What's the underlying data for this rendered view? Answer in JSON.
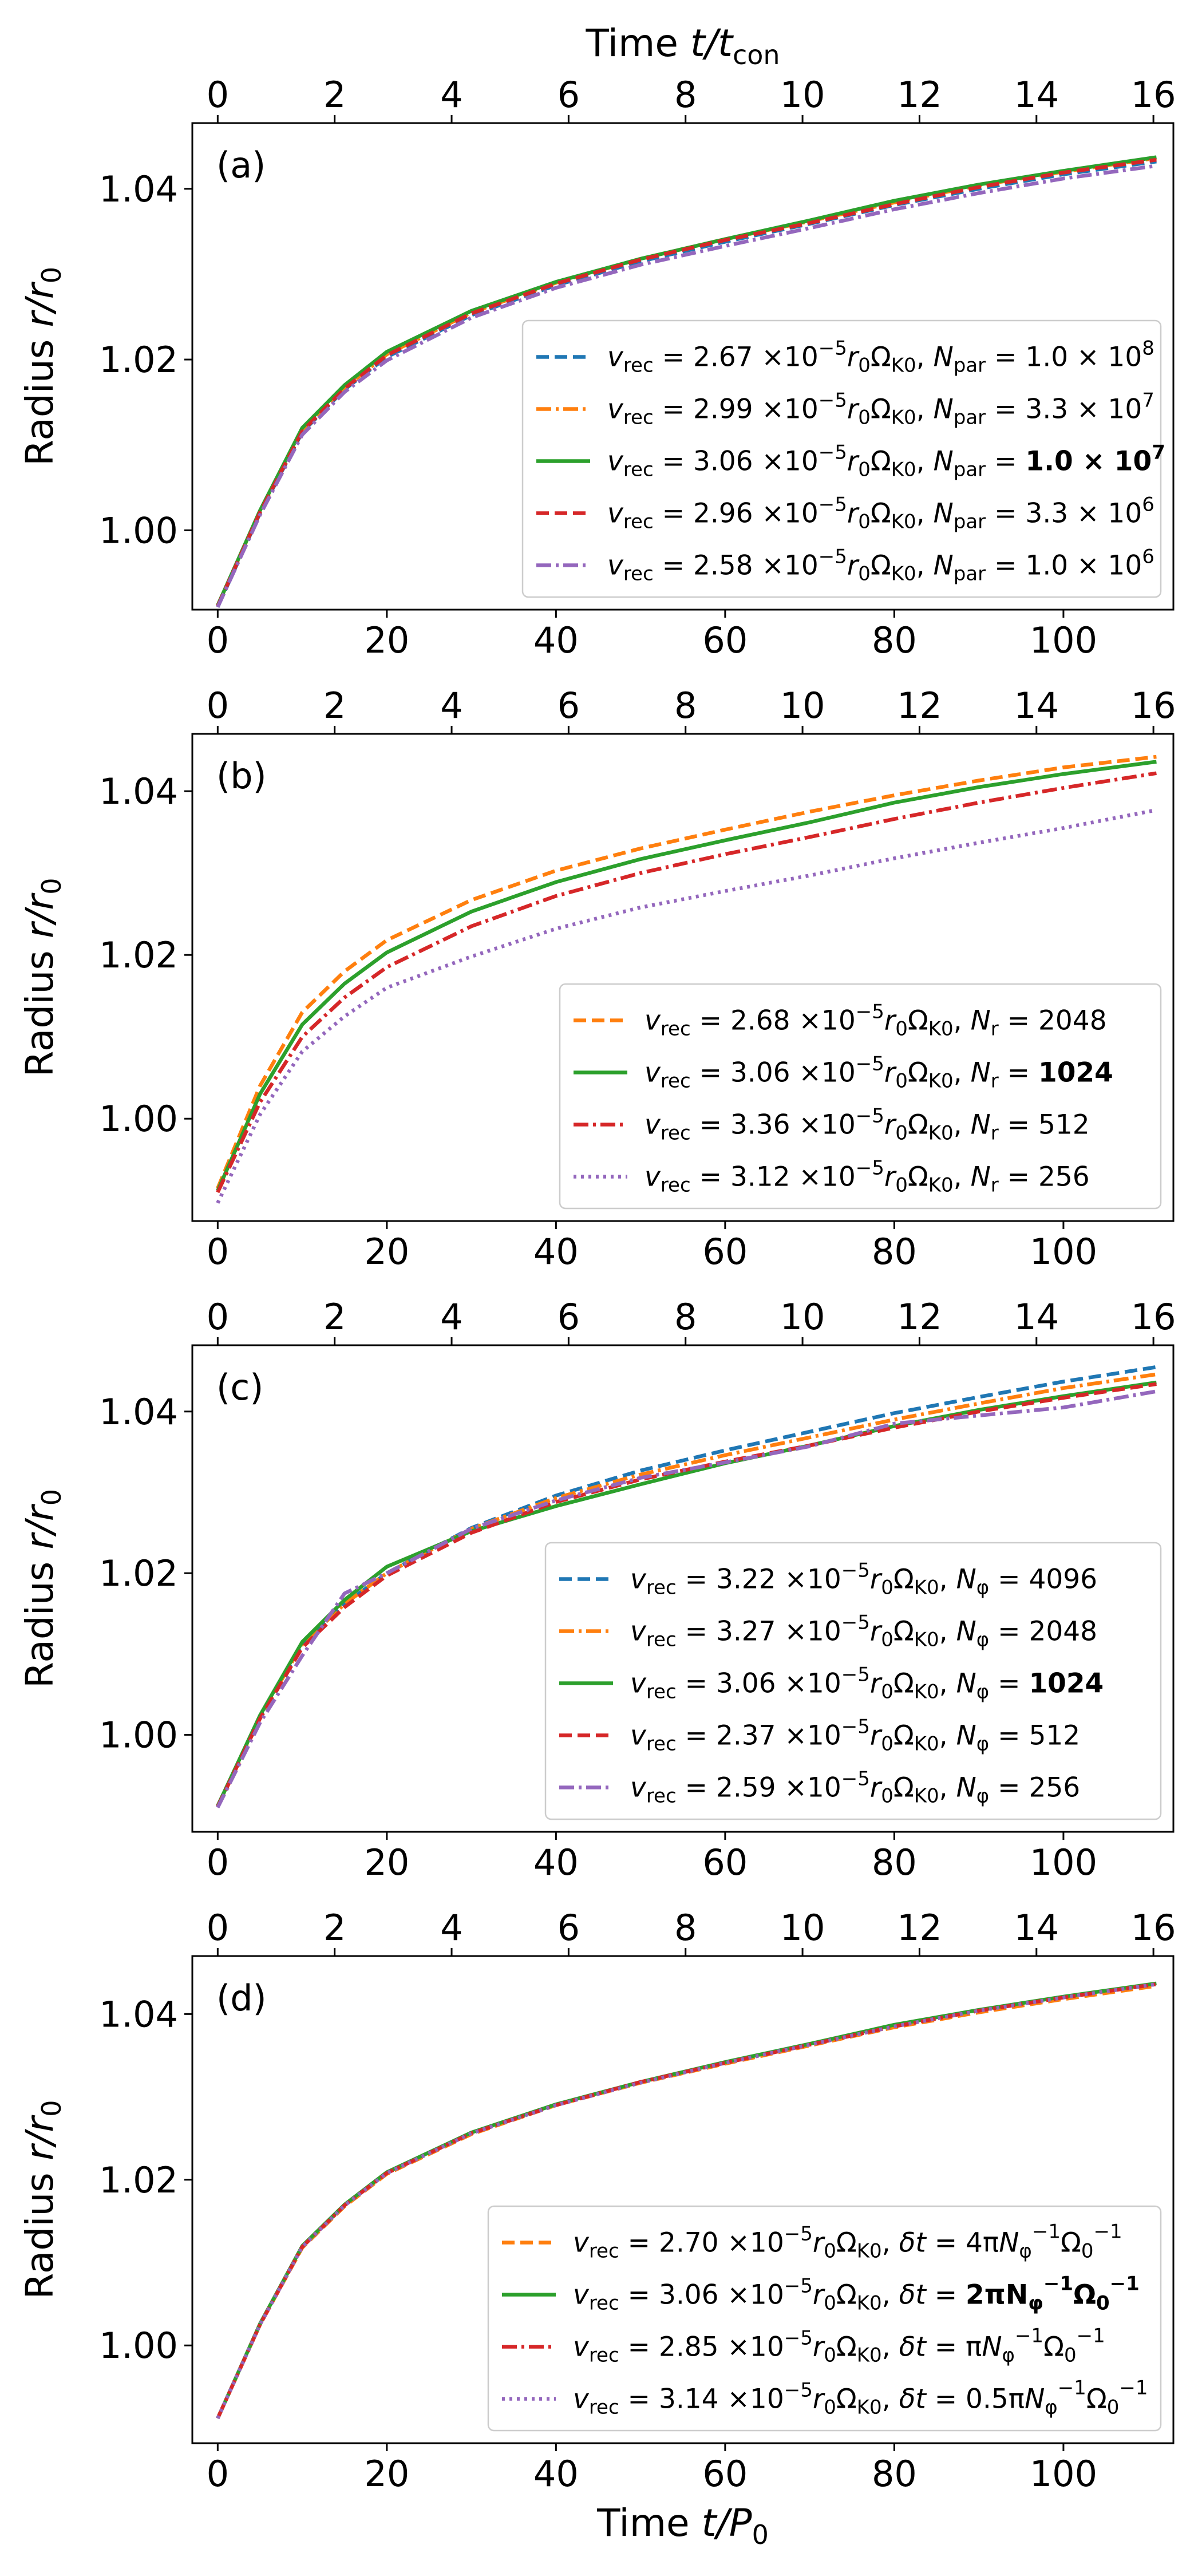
{
  "figure": {
    "top_axis_title_prefix": "Time ",
    "top_axis_title_var": "t",
    "top_axis_title_den": "/t",
    "top_axis_title_sub": "con",
    "bottom_axis_title_prefix": "Time ",
    "bottom_axis_title_var": "t",
    "bottom_axis_title_den": "/P",
    "bottom_axis_title_sub": "0",
    "ylabel_prefix": "Radius ",
    "ylabel_var": "r",
    "ylabel_den": "/r",
    "ylabel_sub": "0"
  },
  "colors": {
    "blue": "#1f77b4",
    "orange": "#ff7f0e",
    "green": "#2ca02c",
    "red": "#d62728",
    "purple": "#9467bd"
  },
  "chart_data": [
    {
      "type": "line",
      "panel_label": "(a)",
      "xlabel_bottom": "",
      "x_ticks": [
        "0",
        "20",
        "40",
        "60",
        "80",
        "100"
      ],
      "x_top_ticks": [
        "0",
        "2",
        "4",
        "6",
        "8",
        "10",
        "12",
        "14",
        "16"
      ],
      "y_ticks": [
        "1.00",
        "1.02",
        "1.04"
      ],
      "xlim": [
        -3,
        113
      ],
      "ylim": [
        0.9907,
        1.0477
      ],
      "legend": "lower-right",
      "x": [
        0,
        5,
        10,
        15,
        20,
        30,
        40,
        50,
        60,
        70,
        80,
        90,
        100,
        111
      ],
      "series": [
        {
          "name": "v_rec = 2.67 ×10^-5 r0ΩK0, N_par = 1.0 × 10^8",
          "color": "blue",
          "style": "dashed",
          "legend_value": "2.67",
          "legend_param": "N",
          "legend_param_sub": "par",
          "legend_param_value": "1.0 × 10",
          "legend_param_exp": "8",
          "bold": false,
          "values": [
            0.991,
            1.002,
            1.0115,
            1.0165,
            1.0203,
            1.0252,
            1.0287,
            1.0315,
            1.0338,
            1.0359,
            1.0381,
            1.04,
            1.0417,
            1.0432
          ]
        },
        {
          "name": "v_rec = 2.99 ×10^-5 r0ΩK0, N_par = 3.3 × 10^7",
          "color": "orange",
          "style": "dashdot",
          "legend_value": "2.99",
          "legend_param": "N",
          "legend_param_sub": "par",
          "legend_param_value": "3.3 × 10",
          "legend_param_exp": "7",
          "bold": false,
          "values": [
            0.9912,
            1.0022,
            1.0118,
            1.0167,
            1.0206,
            1.0255,
            1.029,
            1.0318,
            1.0341,
            1.0362,
            1.0384,
            1.0404,
            1.042,
            1.0436
          ]
        },
        {
          "name": "v_rec = 3.06 ×10^-5 r0ΩK0, N_par = 1.0 × 10^7",
          "color": "green",
          "style": "solid",
          "legend_value": "3.06",
          "legend_param": "N",
          "legend_param_sub": "par",
          "legend_param_value": "1.0 × 10",
          "legend_param_exp": "7",
          "bold": true,
          "values": [
            0.9912,
            1.0023,
            1.012,
            1.017,
            1.0209,
            1.0257,
            1.0291,
            1.0318,
            1.0341,
            1.0363,
            1.0386,
            1.0405,
            1.0421,
            1.0437
          ]
        },
        {
          "name": "v_rec = 2.96 ×10^-5 r0ΩK0, N_par = 3.3 × 10^6",
          "color": "red",
          "style": "dashed",
          "legend_value": "2.96",
          "legend_param": "N",
          "legend_param_sub": "par",
          "legend_param_value": "3.3 × 10",
          "legend_param_exp": "6",
          "bold": false,
          "values": [
            0.9911,
            1.0021,
            1.0116,
            1.0166,
            1.0205,
            1.0254,
            1.0289,
            1.0317,
            1.034,
            1.036,
            1.0382,
            1.0402,
            1.0419,
            1.0434
          ]
        },
        {
          "name": "v_rec = 2.58 ×10^-5 r0ΩK0, N_par = 1.0 × 10^6",
          "color": "purple",
          "style": "dashdot",
          "legend_value": "2.58",
          "legend_param": "N",
          "legend_param_sub": "par",
          "legend_param_value": "1.0 × 10",
          "legend_param_exp": "6",
          "bold": false,
          "values": [
            0.991,
            1.0018,
            1.0112,
            1.0162,
            1.0199,
            1.0249,
            1.0284,
            1.0311,
            1.0333,
            1.0354,
            1.0376,
            1.0395,
            1.0412,
            1.0427
          ]
        }
      ]
    },
    {
      "type": "line",
      "panel_label": "(b)",
      "xlabel_bottom": "",
      "x_ticks": [
        "0",
        "20",
        "40",
        "60",
        "80",
        "100"
      ],
      "x_top_ticks": [
        "0",
        "2",
        "4",
        "6",
        "8",
        "10",
        "12",
        "14",
        "16"
      ],
      "y_ticks": [
        "1.00",
        "1.02",
        "1.04"
      ],
      "xlim": [
        -3,
        113
      ],
      "ylim": [
        0.9875,
        1.047
      ],
      "legend": "lower-right",
      "x": [
        0,
        5,
        10,
        15,
        20,
        30,
        40,
        50,
        60,
        70,
        80,
        90,
        100,
        111
      ],
      "series": [
        {
          "name": "v_rec = 2.68 ×10^-5 r0ΩK0, N_r = 2048",
          "color": "orange",
          "style": "dashed",
          "legend_value": "2.68",
          "legend_param": "N",
          "legend_param_sub": "r",
          "legend_param_value": "2048",
          "legend_param_exp": "",
          "bold": false,
          "values": [
            0.9915,
            1.004,
            1.013,
            1.018,
            1.0218,
            1.0267,
            1.0303,
            1.033,
            1.0353,
            1.0375,
            1.0395,
            1.0413,
            1.0429,
            1.0442
          ]
        },
        {
          "name": "v_rec = 3.06 ×10^-5 r0ΩK0, N_r = 1024",
          "color": "green",
          "style": "solid",
          "legend_value": "3.06",
          "legend_param": "N",
          "legend_param_sub": "r",
          "legend_param_value": "1024",
          "legend_param_exp": "",
          "bold": true,
          "values": [
            0.9912,
            1.003,
            1.0115,
            1.0165,
            1.0203,
            1.0253,
            1.0289,
            1.0317,
            1.034,
            1.0362,
            1.0386,
            1.0405,
            1.0421,
            1.0436
          ]
        },
        {
          "name": "v_rec = 3.36 ×10^-5 r0ΩK0, N_r = 512",
          "color": "red",
          "style": "dashdot",
          "legend_value": "3.36",
          "legend_param": "N",
          "legend_param_sub": "r",
          "legend_param_value": "512",
          "legend_param_exp": "",
          "bold": false,
          "values": [
            0.991,
            1.002,
            1.01,
            1.0148,
            1.0185,
            1.0235,
            1.0272,
            1.03,
            1.0323,
            1.0344,
            1.0366,
            1.0386,
            1.0404,
            1.0422
          ]
        },
        {
          "name": "v_rec = 3.12 ×10^-5 r0ΩK0, N_r = 256",
          "color": "purple",
          "style": "dotted",
          "legend_value": "3.12",
          "legend_param": "N",
          "legend_param_sub": "r",
          "legend_param_value": "256",
          "legend_param_exp": "",
          "bold": false,
          "values": [
            0.9897,
            1.0005,
            1.0082,
            1.0125,
            1.016,
            1.0198,
            1.0232,
            1.0258,
            1.0278,
            1.0297,
            1.0318,
            1.0337,
            1.0355,
            1.0377
          ]
        }
      ]
    },
    {
      "type": "line",
      "panel_label": "(c)",
      "xlabel_bottom": "",
      "x_ticks": [
        "0",
        "20",
        "40",
        "60",
        "80",
        "100"
      ],
      "x_top_ticks": [
        "0",
        "2",
        "4",
        "6",
        "8",
        "10",
        "12",
        "14",
        "16"
      ],
      "y_ticks": [
        "1.00",
        "1.02",
        "1.04"
      ],
      "xlim": [
        -3,
        113
      ],
      "ylim": [
        0.988,
        1.0482
      ],
      "legend": "lower-right",
      "x": [
        0,
        5,
        10,
        15,
        20,
        30,
        40,
        50,
        60,
        70,
        80,
        90,
        100,
        111
      ],
      "series": [
        {
          "name": "v_rec = 3.22 ×10^-5 r0ΩK0, N_φ = 4096",
          "color": "blue",
          "style": "dashed",
          "legend_value": "3.22",
          "legend_param": "N",
          "legend_param_sub": "φ",
          "legend_param_value": "4096",
          "legend_param_exp": "",
          "bold": false,
          "values": [
            0.9912,
            1.0022,
            1.0112,
            1.0162,
            1.02,
            1.0256,
            1.0296,
            1.0327,
            1.0352,
            1.0375,
            1.0398,
            1.0418,
            1.0437,
            1.0455
          ]
        },
        {
          "name": "v_rec = 3.27 ×10^-5 r0ΩK0, N_φ = 2048",
          "color": "orange",
          "style": "dashdot",
          "legend_value": "3.27",
          "legend_param": "N",
          "legend_param_sub": "φ",
          "legend_param_value": "2048",
          "legend_param_exp": "",
          "bold": false,
          "values": [
            0.9912,
            1.0022,
            1.0112,
            1.0162,
            1.02,
            1.0255,
            1.0293,
            1.0322,
            1.0346,
            1.0368,
            1.039,
            1.041,
            1.0429,
            1.0446
          ]
        },
        {
          "name": "v_rec = 3.06 ×10^-5 r0ΩK0, N_φ = 1024",
          "color": "green",
          "style": "solid",
          "legend_value": "3.06",
          "legend_param": "N",
          "legend_param_sub": "φ",
          "legend_param_value": "1024",
          "legend_param_exp": "",
          "bold": true,
          "values": [
            0.9912,
            1.0024,
            1.0115,
            1.0167,
            1.0208,
            1.0252,
            1.0283,
            1.031,
            1.0336,
            1.0358,
            1.0382,
            1.0402,
            1.0419,
            1.0436
          ]
        },
        {
          "name": "v_rec = 2.37 ×10^-5 r0ΩK0, N_φ = 512",
          "color": "red",
          "style": "dashed",
          "legend_value": "2.37",
          "legend_param": "N",
          "legend_param_sub": "φ",
          "legend_param_value": "512",
          "legend_param_exp": "",
          "bold": false,
          "values": [
            0.9911,
            1.002,
            1.0108,
            1.0158,
            1.0197,
            1.025,
            1.0288,
            1.0316,
            1.0338,
            1.0358,
            1.038,
            1.04,
            1.0417,
            1.0434
          ]
        },
        {
          "name": "v_rec = 2.59 ×10^-5 r0ΩK0, N_φ = 256",
          "color": "purple",
          "style": "dashdot",
          "legend_value": "2.59",
          "legend_param": "N",
          "legend_param_sub": "φ",
          "legend_param_value": "256",
          "legend_param_exp": "",
          "bold": false,
          "values": [
            0.991,
            1.0015,
            1.0098,
            1.0175,
            1.02,
            1.0255,
            1.029,
            1.0318,
            1.0337,
            1.0357,
            1.0385,
            1.0395,
            1.0405,
            1.0425
          ]
        }
      ]
    },
    {
      "type": "line",
      "panel_label": "(d)",
      "xlabel_bottom": "Time t/P0",
      "x_ticks": [
        "0",
        "20",
        "40",
        "60",
        "80",
        "100"
      ],
      "x_top_ticks": [
        "0",
        "2",
        "4",
        "6",
        "8",
        "10",
        "12",
        "14",
        "16"
      ],
      "y_ticks": [
        "1.00",
        "1.02",
        "1.04"
      ],
      "xlim": [
        -3,
        113
      ],
      "ylim": [
        0.9882,
        1.047
      ],
      "legend": "lower-right",
      "x": [
        0,
        5,
        10,
        15,
        20,
        30,
        40,
        50,
        60,
        70,
        80,
        90,
        100,
        111
      ],
      "series": [
        {
          "name": "v_rec = 2.70 ×10^-5 r0ΩK0, δt = 4πNφ^-1 Ω0^-1",
          "color": "orange",
          "style": "dashed",
          "legend_value": "2.70",
          "legend_param": "δt",
          "legend_param_sub": "",
          "legend_param_value": "4π",
          "legend_param_exp": "",
          "bold": false,
          "values": [
            0.9912,
            1.0025,
            1.0118,
            1.0168,
            1.0207,
            1.0255,
            1.029,
            1.0317,
            1.034,
            1.0362,
            1.0384,
            1.0402,
            1.0418,
            1.0434
          ]
        },
        {
          "name": "v_rec = 3.06 ×10^-5 r0ΩK0, δt = 2πNφ^-1 Ω0^-1",
          "color": "green",
          "style": "solid",
          "legend_value": "3.06",
          "legend_param": "δt",
          "legend_param_sub": "",
          "legend_param_value": "2π",
          "legend_param_exp": "",
          "bold": true,
          "values": [
            0.9912,
            1.0026,
            1.012,
            1.017,
            1.0209,
            1.0257,
            1.0291,
            1.0318,
            1.0342,
            1.0364,
            1.0387,
            1.0405,
            1.0421,
            1.0437
          ]
        },
        {
          "name": "v_rec = 2.85 ×10^-5 r0ΩK0, δt = πNφ^-1 Ω0^-1",
          "color": "red",
          "style": "dashdot",
          "legend_value": "2.85",
          "legend_param": "δt",
          "legend_param_sub": "",
          "legend_param_value": "π",
          "legend_param_exp": "",
          "bold": false,
          "values": [
            0.9912,
            1.0025,
            1.0119,
            1.0169,
            1.0208,
            1.0256,
            1.029,
            1.0318,
            1.0341,
            1.0363,
            1.0385,
            1.0404,
            1.042,
            1.0436
          ]
        },
        {
          "name": "v_rec = 3.14 ×10^-5 r0ΩK0, δt = 0.5πNφ^-1 Ω0^-1",
          "color": "purple",
          "style": "dotted",
          "legend_value": "3.14",
          "legend_param": "δt",
          "legend_param_sub": "",
          "legend_param_value": "0.5π",
          "legend_param_exp": "",
          "bold": false,
          "values": [
            0.9912,
            1.0025,
            1.0119,
            1.0169,
            1.0208,
            1.0256,
            1.029,
            1.0317,
            1.0341,
            1.0363,
            1.0385,
            1.0404,
            1.042,
            1.0436
          ]
        }
      ]
    }
  ]
}
